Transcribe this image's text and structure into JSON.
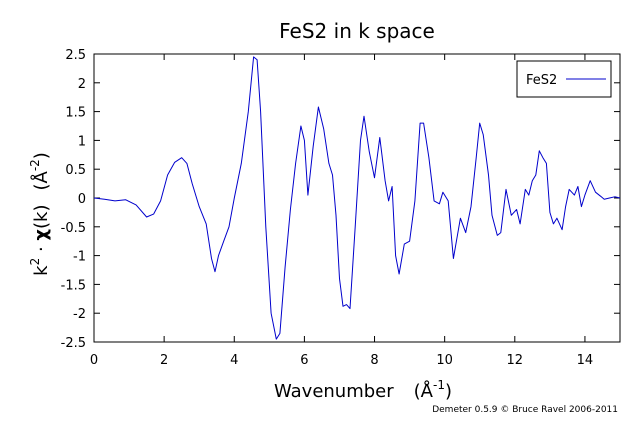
{
  "chart_data": {
    "type": "line",
    "title": "FeS2 in k space",
    "xlabel_main": "Wavenumber",
    "xlabel_unit": "(Å",
    "xlabel_sup": "-1",
    "xlabel_close": ")",
    "ylabel_k": "k",
    "ylabel_sup": "2",
    "ylabel_mid": " · ",
    "ylabel_chi": "χ",
    "ylabel_arg": "(k)",
    "ylabel_unit": "(Å",
    "ylabel_unit_sup": "-2",
    "ylabel_unit_close": ")",
    "xlim": [
      0,
      15
    ],
    "ylim": [
      -2.5,
      2.5
    ],
    "xticks": [
      0,
      2,
      4,
      6,
      8,
      10,
      12,
      14
    ],
    "xtick_labels": [
      "0",
      "2",
      "4",
      "6",
      "8",
      "10",
      "12",
      "14"
    ],
    "yticks": [
      -2.5,
      -2,
      -1.5,
      -1,
      -0.5,
      0,
      0.5,
      1,
      1.5,
      2,
      2.5
    ],
    "ytick_labels": [
      "-2.5",
      "-2",
      "-1.5",
      "-1",
      "-0.5",
      "0",
      "0.5",
      "1",
      "1.5",
      "2",
      "2.5"
    ],
    "grid": false,
    "legend_position": "top-right",
    "series": [
      {
        "name": "FeS2",
        "color": "#0000cc",
        "x": [
          0.0,
          0.3,
          0.6,
          0.9,
          1.2,
          1.5,
          1.7,
          1.9,
          2.1,
          2.3,
          2.5,
          2.65,
          2.8,
          3.0,
          3.2,
          3.35,
          3.45,
          3.55,
          3.7,
          3.85,
          4.0,
          4.2,
          4.4,
          4.55,
          4.65,
          4.75,
          4.9,
          5.05,
          5.2,
          5.3,
          5.45,
          5.6,
          5.75,
          5.9,
          6.0,
          6.1,
          6.25,
          6.4,
          6.55,
          6.7,
          6.8,
          6.9,
          7.0,
          7.1,
          7.2,
          7.3,
          7.45,
          7.6,
          7.7,
          7.85,
          8.0,
          8.15,
          8.3,
          8.4,
          8.5,
          8.6,
          8.7,
          8.85,
          9.0,
          9.15,
          9.3,
          9.4,
          9.55,
          9.7,
          9.85,
          9.95,
          10.1,
          10.25,
          10.35,
          10.45,
          10.6,
          10.75,
          10.9,
          11.0,
          11.1,
          11.25,
          11.35,
          11.5,
          11.6,
          11.75,
          11.9,
          12.05,
          12.15,
          12.3,
          12.4,
          12.5,
          12.6,
          12.7,
          12.8,
          12.9,
          13.0,
          13.1,
          13.2,
          13.35,
          13.45,
          13.55,
          13.7,
          13.8,
          13.9,
          14.0,
          14.15,
          14.3,
          14.45,
          14.55,
          14.7,
          14.85,
          15.0
        ],
        "y": [
          0.0,
          -0.02,
          -0.05,
          -0.03,
          -0.12,
          -0.33,
          -0.28,
          -0.05,
          0.4,
          0.62,
          0.7,
          0.6,
          0.25,
          -0.15,
          -0.45,
          -1.05,
          -1.28,
          -1.0,
          -0.75,
          -0.5,
          0.0,
          0.6,
          1.5,
          2.45,
          2.4,
          1.5,
          -0.5,
          -2.0,
          -2.45,
          -2.35,
          -1.2,
          -0.2,
          0.6,
          1.25,
          1.0,
          0.05,
          0.9,
          1.58,
          1.2,
          0.6,
          0.4,
          -0.3,
          -1.4,
          -1.88,
          -1.85,
          -1.92,
          -0.5,
          1.0,
          1.42,
          0.8,
          0.35,
          1.05,
          0.3,
          -0.05,
          0.2,
          -1.0,
          -1.32,
          -0.8,
          -0.75,
          -0.05,
          1.3,
          1.3,
          0.7,
          -0.05,
          -0.1,
          0.1,
          -0.05,
          -1.05,
          -0.7,
          -0.35,
          -0.6,
          -0.15,
          0.7,
          1.3,
          1.1,
          0.4,
          -0.3,
          -0.65,
          -0.6,
          0.15,
          -0.3,
          -0.2,
          -0.45,
          0.15,
          0.05,
          0.3,
          0.4,
          0.82,
          0.7,
          0.6,
          -0.25,
          -0.45,
          -0.35,
          -0.55,
          -0.15,
          0.15,
          0.05,
          0.2,
          -0.15,
          0.05,
          0.3,
          0.1,
          0.03,
          -0.02,
          0.0,
          0.02,
          0.0
        ]
      }
    ]
  },
  "credit": "Demeter 0.5.9 © Bruce Ravel 2006-2011"
}
